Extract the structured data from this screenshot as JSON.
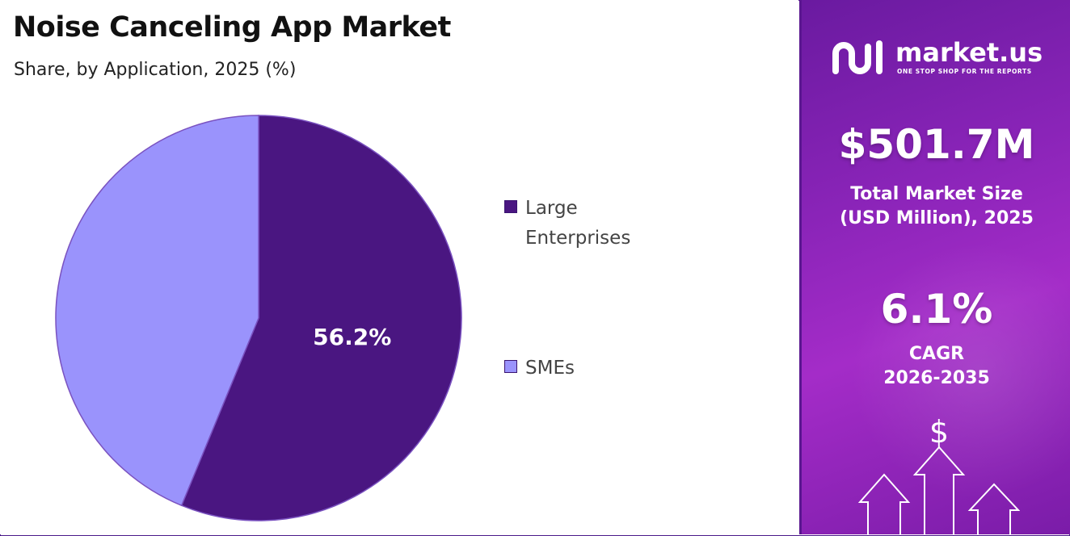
{
  "chart_data": {
    "type": "pie",
    "title": "Noise Canceling App Market",
    "subtitle": "Share, by Application, 2025 (%)",
    "slices": [
      {
        "name": "Large Enterprises",
        "value": 56.2,
        "label": "56.2%",
        "color": "#4a1681"
      },
      {
        "name": "SMEs",
        "value": 43.8,
        "label": "",
        "color": "#9a93fc"
      }
    ],
    "legend_position": "right"
  },
  "sidebar": {
    "brand_name": "market.us",
    "brand_tagline": "ONE STOP SHOP FOR THE REPORTS",
    "market_size_value": "$501.7M",
    "market_size_label_line1": "Total Market Size",
    "market_size_label_line2": "(USD Million), 2025",
    "cagr_value": "6.1%",
    "cagr_label_line1": "CAGR",
    "cagr_label_line2": "2026-2035",
    "icon": "dollar-growth-arrows-icon"
  }
}
